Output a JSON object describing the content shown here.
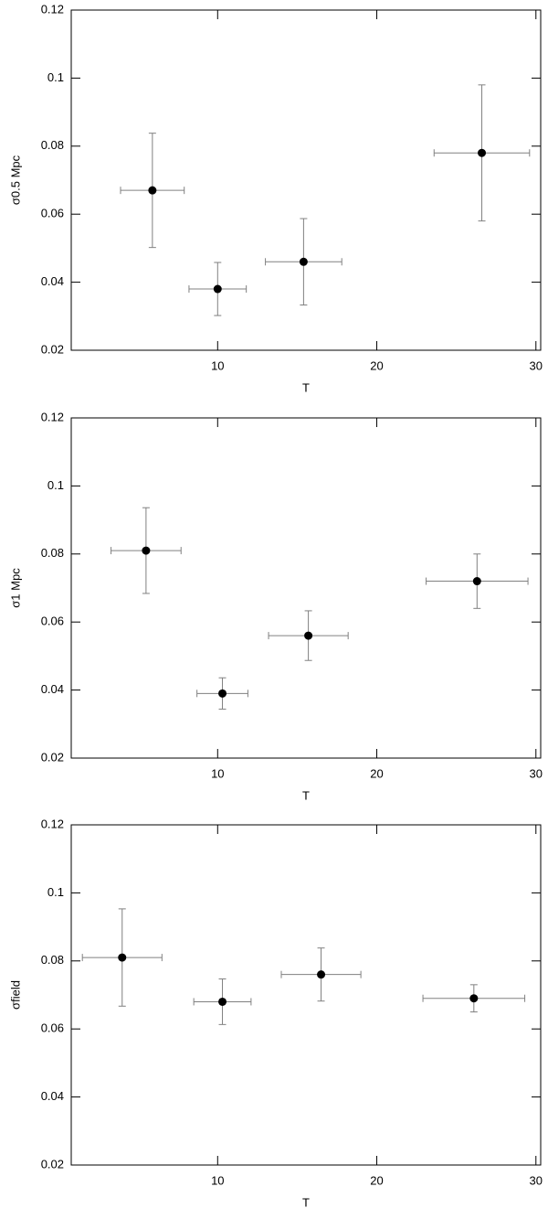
{
  "chart_data": [
    {
      "type": "scatter",
      "ylabel": "σ0.5 Mpc",
      "xlabel": "T",
      "x": [
        5.9,
        10,
        15.4,
        26.6
      ],
      "xerr": [
        2.0,
        1.8,
        2.4,
        3.0
      ],
      "values": [
        0.067,
        0.038,
        0.046,
        0.078
      ],
      "yerr": [
        0.0168,
        0.0078,
        0.0127,
        0.02
      ],
      "color": "#000000",
      "error_color": "#808080",
      "xlim": [
        0.8,
        30.3
      ],
      "xticks": [
        10,
        20,
        30
      ],
      "ylim": [
        0.02,
        0.12
      ],
      "yticks": [
        0.02,
        0.04,
        0.06,
        0.08,
        0.1,
        0.12
      ]
    },
    {
      "type": "scatter",
      "ylabel": "σ1 Mpc",
      "xlabel": "T",
      "x": [
        5.5,
        10.3,
        15.7,
        26.3
      ],
      "xerr": [
        2.2,
        1.6,
        2.5,
        3.2
      ],
      "values": [
        0.081,
        0.039,
        0.056,
        0.072
      ],
      "yerr": [
        0.0126,
        0.0046,
        0.0073,
        0.008
      ],
      "color": "#000000",
      "error_color": "#808080",
      "xlim": [
        0.8,
        30.3
      ],
      "xticks": [
        10,
        20,
        30
      ],
      "ylim": [
        0.02,
        0.12
      ],
      "yticks": [
        0.02,
        0.04,
        0.06,
        0.08,
        0.1,
        0.12
      ]
    },
    {
      "type": "scatter",
      "ylabel": "σfield",
      "xlabel": "T",
      "x": [
        4.0,
        10.3,
        16.5,
        26.1
      ],
      "xerr": [
        2.5,
        1.8,
        2.5,
        3.2
      ],
      "values": [
        0.081,
        0.068,
        0.076,
        0.069
      ],
      "yerr": [
        0.0143,
        0.0067,
        0.0078,
        0.004
      ],
      "color": "#000000",
      "error_color": "#808080",
      "xlim": [
        0.8,
        30.3
      ],
      "xticks": [
        10,
        20,
        30
      ],
      "ylim": [
        0.02,
        0.12
      ],
      "yticks": [
        0.02,
        0.04,
        0.06,
        0.08,
        0.1,
        0.12
      ]
    }
  ]
}
